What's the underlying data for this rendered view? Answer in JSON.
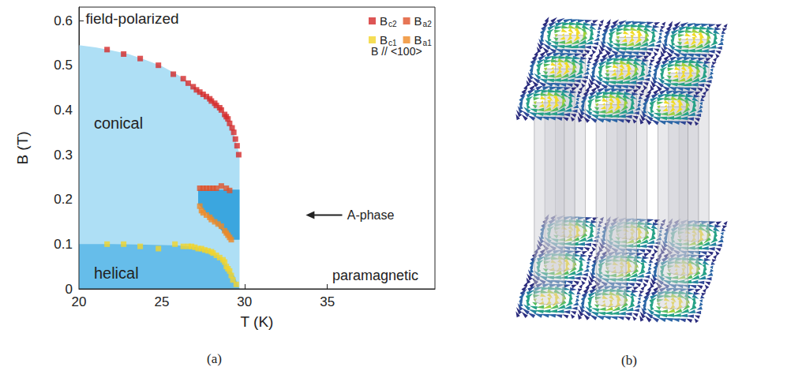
{
  "chart_data": {
    "type": "scatter",
    "caption": "(a)",
    "x_label": "T (K)",
    "y_label": "B (T)",
    "xlim": [
      20,
      41.5
    ],
    "xticks": [
      20,
      25,
      30,
      35
    ],
    "ylim": [
      0,
      0.63
    ],
    "yticks": [
      0,
      0.1,
      0.2,
      0.3,
      0.4,
      0.5,
      0.6
    ],
    "legend": "top-right",
    "legend_note": "B // <100>",
    "marker": "square",
    "series": [
      {
        "name": "Bc2",
        "color": "#d42a2a",
        "x": [
          21.7,
          22.7,
          23.7,
          24.8,
          25.7,
          26.3,
          26.6,
          26.9,
          27.1,
          27.3,
          27.5,
          27.7,
          27.9,
          28.0,
          28.2,
          28.3,
          28.5,
          28.6,
          28.8,
          28.9,
          29.0,
          29.1,
          29.25,
          29.35,
          29.45,
          29.55,
          29.65
        ],
        "values": [
          0.535,
          0.525,
          0.515,
          0.5,
          0.48,
          0.47,
          0.46,
          0.452,
          0.445,
          0.44,
          0.435,
          0.43,
          0.425,
          0.42,
          0.415,
          0.41,
          0.405,
          0.4,
          0.39,
          0.385,
          0.38,
          0.37,
          0.36,
          0.35,
          0.335,
          0.32,
          0.3
        ]
      },
      {
        "name": "Ba2",
        "color": "#e0522a",
        "x": [
          27.3,
          27.5,
          27.7,
          27.9,
          28.1,
          28.3,
          28.6,
          28.9,
          29.1
        ],
        "values": [
          0.225,
          0.225,
          0.225,
          0.225,
          0.225,
          0.225,
          0.23,
          0.225,
          0.22
        ]
      },
      {
        "name": "Bc1",
        "color": "#f2d52a",
        "x": [
          21.7,
          22.7,
          23.7,
          24.8,
          25.8,
          26.3,
          26.6,
          26.8,
          27.0,
          27.2,
          27.4,
          27.6,
          27.8,
          28.0,
          28.1,
          28.3,
          28.5,
          28.7,
          28.8,
          28.9,
          29.0,
          29.1,
          29.2,
          29.3,
          29.5
        ],
        "values": [
          0.1,
          0.1,
          0.095,
          0.09,
          0.1,
          0.095,
          0.095,
          0.095,
          0.093,
          0.09,
          0.09,
          0.087,
          0.085,
          0.083,
          0.08,
          0.075,
          0.07,
          0.065,
          0.06,
          0.05,
          0.045,
          0.04,
          0.03,
          0.02,
          0.01
        ]
      },
      {
        "name": "Ba1",
        "color": "#ef8a25",
        "x": [
          27.3,
          27.4,
          27.5,
          27.7,
          27.9,
          28.0,
          28.2,
          28.4,
          28.6,
          28.8,
          28.9,
          29.0,
          29.1,
          29.2
        ],
        "values": [
          0.185,
          0.175,
          0.17,
          0.165,
          0.16,
          0.155,
          0.15,
          0.145,
          0.14,
          0.13,
          0.125,
          0.12,
          0.115,
          0.11
        ]
      }
    ],
    "regions": [
      {
        "name": "conical",
        "color": "#aedff5",
        "x": [
          20,
          21,
          22,
          23,
          24,
          25,
          26,
          27,
          28,
          28.5,
          29,
          29.3,
          29.7,
          29.7,
          20
        ],
        "y": [
          0.545,
          0.54,
          0.533,
          0.525,
          0.512,
          0.498,
          0.478,
          0.45,
          0.418,
          0.402,
          0.378,
          0.355,
          0.3,
          0,
          0
        ]
      },
      {
        "name": "helical",
        "color": "#66bdea",
        "x": [
          20,
          22,
          24,
          26,
          27,
          27.5,
          28,
          28.5,
          29,
          29.4,
          29.7,
          20
        ],
        "y": [
          0.1,
          0.1,
          0.099,
          0.097,
          0.094,
          0.09,
          0.084,
          0.072,
          0.05,
          0.028,
          0,
          0
        ]
      },
      {
        "name": "A-phase",
        "color": "#3ba6df",
        "x": [
          27.2,
          29.7,
          29.7,
          29.1,
          27.2
        ],
        "y": [
          0.222,
          0.222,
          0.11,
          0.11,
          0.19
        ]
      }
    ],
    "annotations": [
      "field-polarized",
      "paramagnetic"
    ]
  },
  "illustration": {
    "caption": "(b)"
  }
}
